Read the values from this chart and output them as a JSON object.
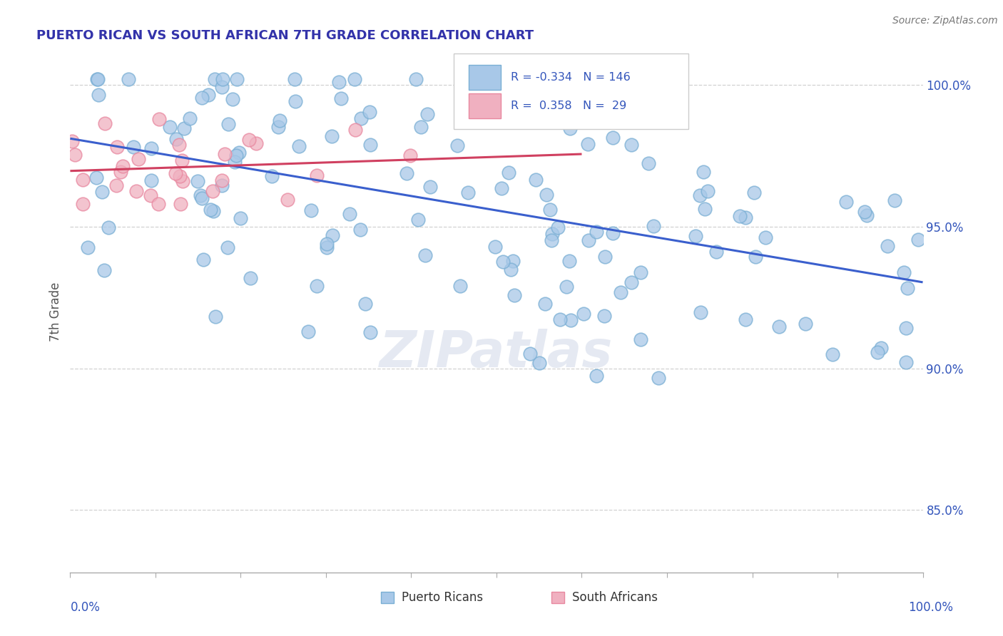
{
  "title": "PUERTO RICAN VS SOUTH AFRICAN 7TH GRADE CORRELATION CHART",
  "source": "Source: ZipAtlas.com",
  "ylabel": "7th Grade",
  "y_tick_labels": [
    "85.0%",
    "90.0%",
    "95.0%",
    "100.0%"
  ],
  "y_tick_values": [
    0.85,
    0.9,
    0.95,
    1.0
  ],
  "xlim": [
    0.0,
    1.0
  ],
  "ylim": [
    0.828,
    1.012
  ],
  "blue_R": -0.334,
  "blue_N": 146,
  "pink_R": 0.358,
  "pink_N": 29,
  "blue_color": "#a8c8e8",
  "pink_color": "#f0b0c0",
  "blue_edge_color": "#7aafd4",
  "pink_edge_color": "#e888a0",
  "blue_line_color": "#3a5fcd",
  "pink_line_color": "#d04060",
  "watermark_text": "ZIPatlas",
  "legend_text_color": "#3355bb",
  "title_color": "#3333aa",
  "tick_label_color": "#3355bb",
  "bottom_label_color": "#3355bb",
  "spine_color": "#aaaaaa",
  "grid_color": "#cccccc"
}
